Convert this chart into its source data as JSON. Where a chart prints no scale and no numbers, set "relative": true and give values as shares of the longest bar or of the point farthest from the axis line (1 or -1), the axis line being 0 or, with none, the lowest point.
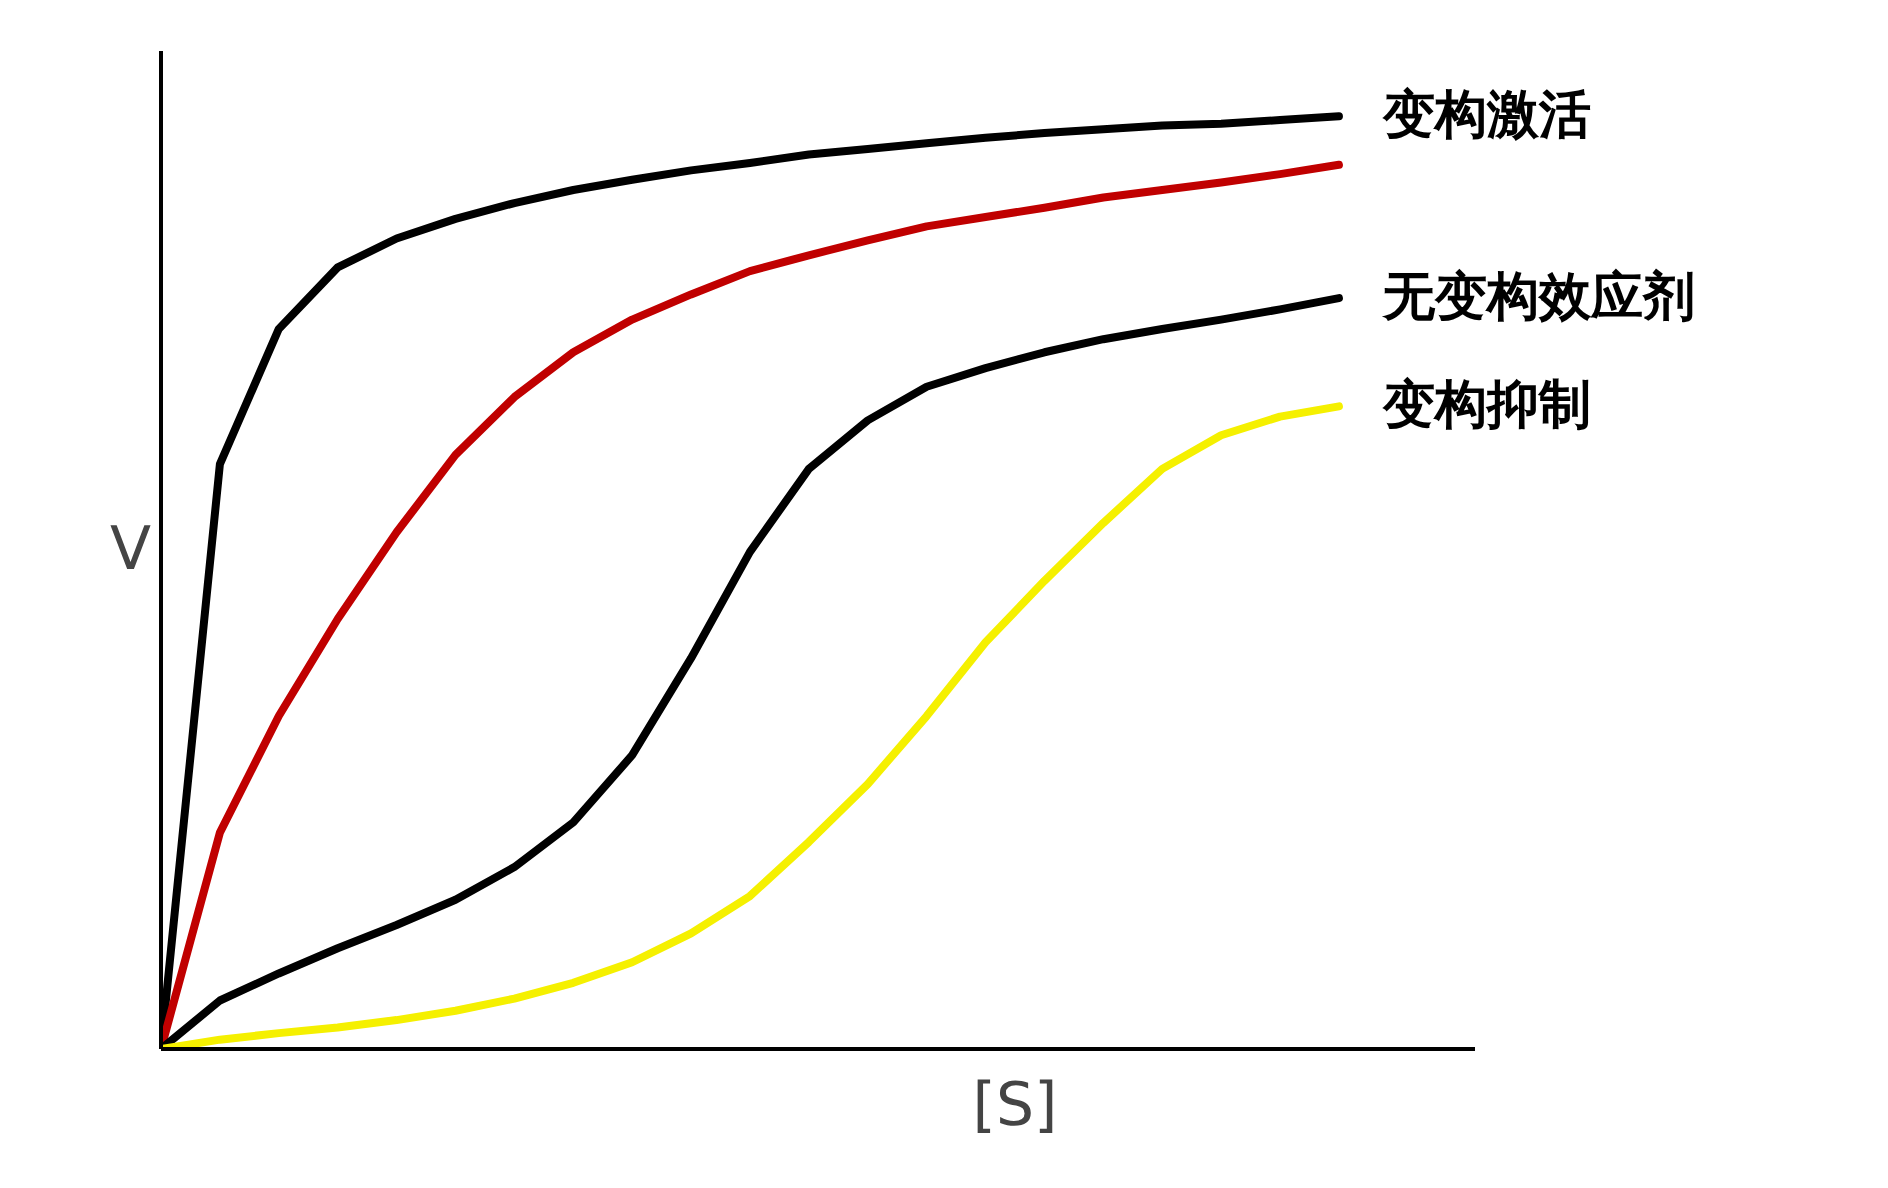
{
  "chart_data": {
    "type": "line",
    "relative": true,
    "xlabel": "[S]",
    "ylabel": "V",
    "categories": [
      null,
      null,
      null,
      null,
      null,
      null,
      null,
      null,
      null,
      null,
      null,
      null,
      null,
      null,
      null,
      null,
      null,
      null,
      null,
      null,
      null
    ],
    "series": [
      {
        "name": "变构激活",
        "color": "#000000",
        "values": [
          0,
          0.627,
          0.772,
          0.838,
          0.869,
          0.89,
          0.907,
          0.921,
          0.932,
          0.942,
          0.95,
          0.959,
          0.965,
          0.971,
          0.977,
          0.982,
          0.986,
          0.99,
          0.992,
          0.996,
          1.0
        ]
      },
      {
        "color": "#c00000",
        "values": [
          0,
          0.232,
          0.357,
          0.461,
          0.554,
          0.637,
          0.699,
          0.747,
          0.782,
          0.809,
          0.834,
          0.851,
          0.867,
          0.882,
          0.892,
          0.902,
          0.913,
          0.921,
          0.929,
          0.938,
          0.948
        ]
      },
      {
        "name": "无变构效应剂",
        "color": "#000000",
        "values": [
          0,
          0.052,
          0.081,
          0.108,
          0.133,
          0.16,
          0.195,
          0.243,
          0.315,
          0.419,
          0.533,
          0.622,
          0.674,
          0.71,
          0.73,
          0.747,
          0.761,
          0.772,
          0.782,
          0.793,
          0.805
        ]
      },
      {
        "name": "变构抑制",
        "color": "#f5f000",
        "values": [
          0,
          0.01,
          0.017,
          0.023,
          0.031,
          0.041,
          0.054,
          0.071,
          0.093,
          0.124,
          0.164,
          0.222,
          0.284,
          0.357,
          0.436,
          0.502,
          0.564,
          0.622,
          0.658,
          0.678,
          0.689
        ]
      }
    ],
    "grid": false
  }
}
